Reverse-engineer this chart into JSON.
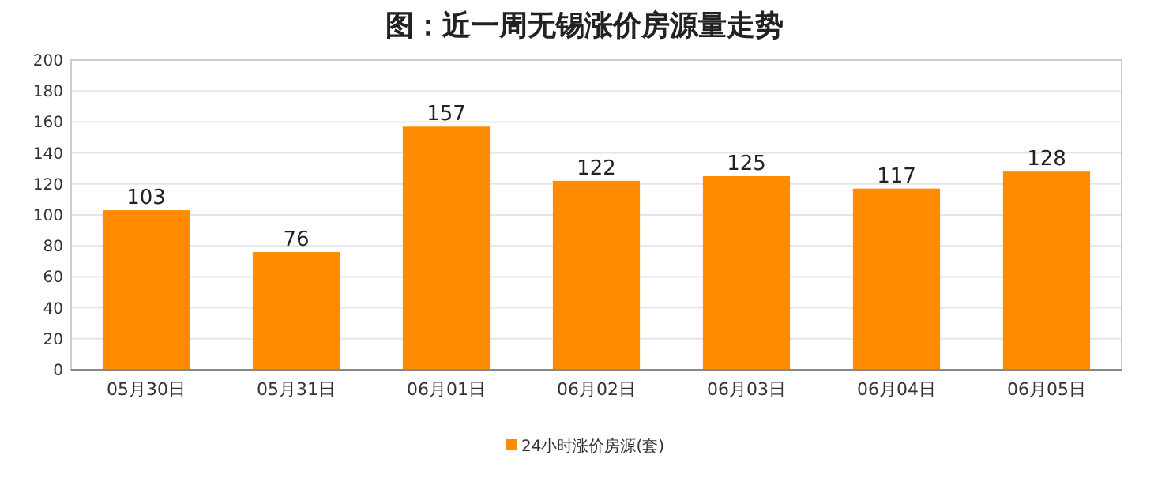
{
  "chart_data": {
    "type": "bar",
    "title": "图：近一周无锡涨价房源量走势",
    "categories": [
      "05月30日",
      "05月31日",
      "06月01日",
      "06月02日",
      "06月03日",
      "06月04日",
      "06月05日"
    ],
    "series": [
      {
        "name": "24小时涨价房源(套)",
        "color": "#ff8c00",
        "values": [
          103,
          76,
          157,
          122,
          125,
          117,
          128
        ]
      }
    ],
    "ylim": [
      0,
      200
    ],
    "yticks": [
      0,
      20,
      40,
      60,
      80,
      100,
      120,
      140,
      160,
      180,
      200
    ],
    "grid": "y",
    "data_labels": true,
    "legend": "bottom"
  }
}
